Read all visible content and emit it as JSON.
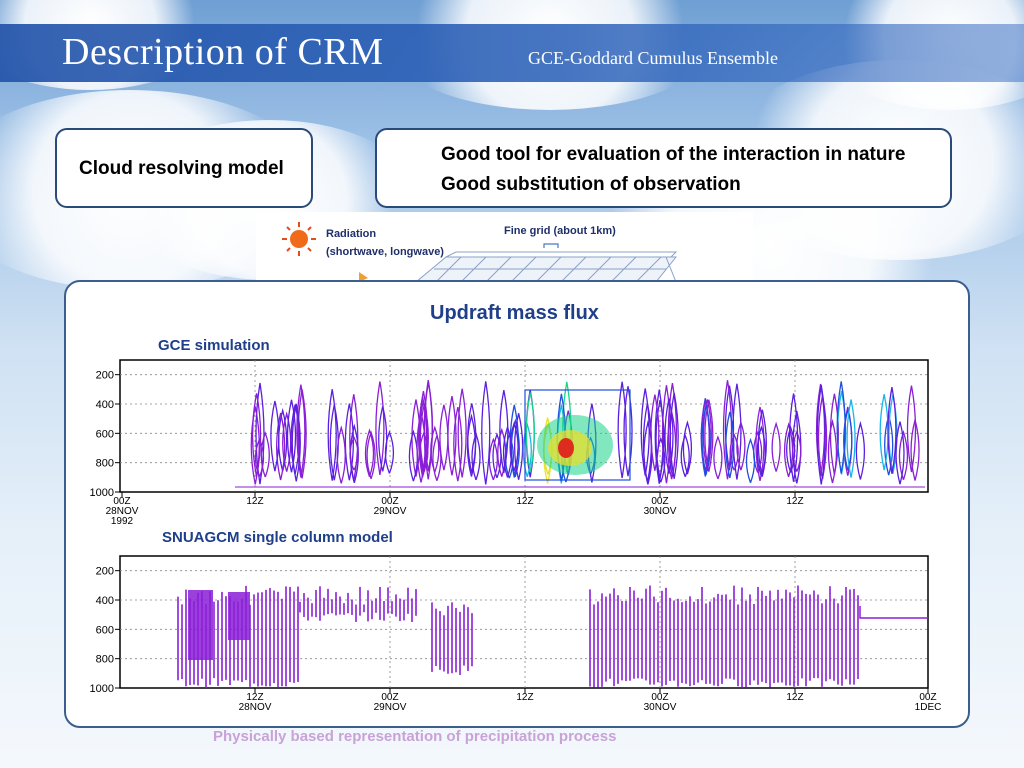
{
  "slide": {
    "title": "Description of CRM",
    "subtitle": "GCE-Goddard Cumulus Ensemble",
    "left_box": "Cloud resolving model",
    "right_box_lines": [
      "Good tool for evaluation of the interaction in nature",
      "Good substitution of observation"
    ],
    "behind_text": "Physically based representation of precipitation process"
  },
  "diagram": {
    "radiation_label_1": "Radiation",
    "radiation_label_2": "(shortwave, longwave)",
    "grid_label": "Fine grid (about 1km)"
  },
  "panel": {
    "title": "Updraft mass flux",
    "top_label": "GCE simulation",
    "bottom_label": "SNUAGCM single column model"
  },
  "chart_data": [
    {
      "type": "heatmap",
      "title": "GCE simulation",
      "y_ticks": [
        "200",
        "400",
        "600",
        "800",
        "1000"
      ],
      "ylim": [
        1000,
        100
      ],
      "x_ticks": [
        "00Z 28NOV 1992",
        "12Z",
        "00Z 29NOV",
        "12Z",
        "00Z 30NOV",
        "12Z"
      ],
      "grid": true,
      "colors": [
        "#8a1fd6",
        "#5a1fe0",
        "#1f4fe0",
        "#17b6e8",
        "#18d48a",
        "#e8e02a",
        "#f06a1a",
        "#e01a1a"
      ]
    },
    {
      "type": "bar",
      "title": "SNUAGCM single column model",
      "y_ticks": [
        "200",
        "400",
        "600",
        "800",
        "1000"
      ],
      "ylim": [
        1000,
        100
      ],
      "x_ticks": [
        "12Z 28NOV",
        "00Z 29NOV",
        "12Z",
        "00Z 30NOV",
        "12Z",
        "00Z 1DEC"
      ],
      "grid": true,
      "colors": [
        "#8a1fd6"
      ]
    }
  ]
}
